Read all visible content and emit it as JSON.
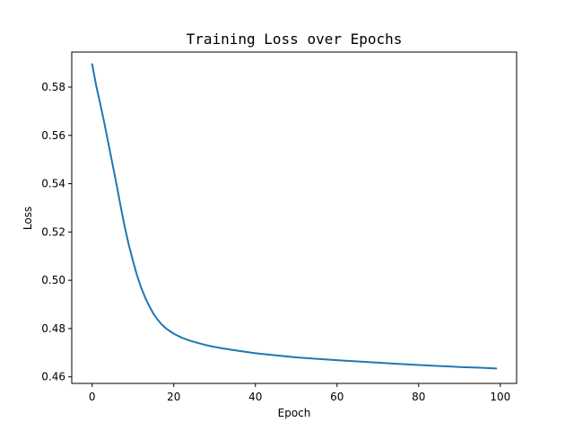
{
  "chart_data": {
    "type": "line",
    "title": "Training Loss over Epochs",
    "xlabel": "Epoch",
    "ylabel": "Loss",
    "xlim": [
      -5,
      104
    ],
    "ylim": [
      0.4573,
      0.5945
    ],
    "xticks": [
      0,
      20,
      40,
      60,
      80,
      100
    ],
    "yticks": [
      0.46,
      0.48,
      0.5,
      0.52,
      0.54,
      0.56,
      0.58
    ],
    "x_tick_labels": [
      "0",
      "20",
      "40",
      "60",
      "80",
      "100"
    ],
    "y_tick_labels": [
      "0.46",
      "0.48",
      "0.50",
      "0.52",
      "0.54",
      "0.56",
      "0.58"
    ],
    "grid": false,
    "legend": false,
    "series": [
      {
        "color": "#1f77b4",
        "x": [
          0,
          1,
          2,
          3,
          4,
          5,
          6,
          7,
          8,
          9,
          10,
          11,
          12,
          13,
          14,
          15,
          16,
          17,
          18,
          19,
          20,
          22,
          24,
          26,
          28,
          30,
          32,
          35,
          40,
          45,
          50,
          55,
          60,
          65,
          70,
          75,
          80,
          85,
          90,
          95,
          99
        ],
        "y": [
          0.5895,
          0.5805,
          0.573,
          0.565,
          0.5565,
          0.548,
          0.5395,
          0.5305,
          0.522,
          0.5145,
          0.508,
          0.502,
          0.497,
          0.4928,
          0.4893,
          0.4862,
          0.4838,
          0.4818,
          0.4802,
          0.479,
          0.4779,
          0.4762,
          0.475,
          0.474,
          0.4731,
          0.4724,
          0.4718,
          0.471,
          0.4698,
          0.4689,
          0.4681,
          0.4675,
          0.4669,
          0.4664,
          0.4659,
          0.4654,
          0.4649,
          0.4645,
          0.4641,
          0.4638,
          0.4635
        ]
      }
    ]
  }
}
